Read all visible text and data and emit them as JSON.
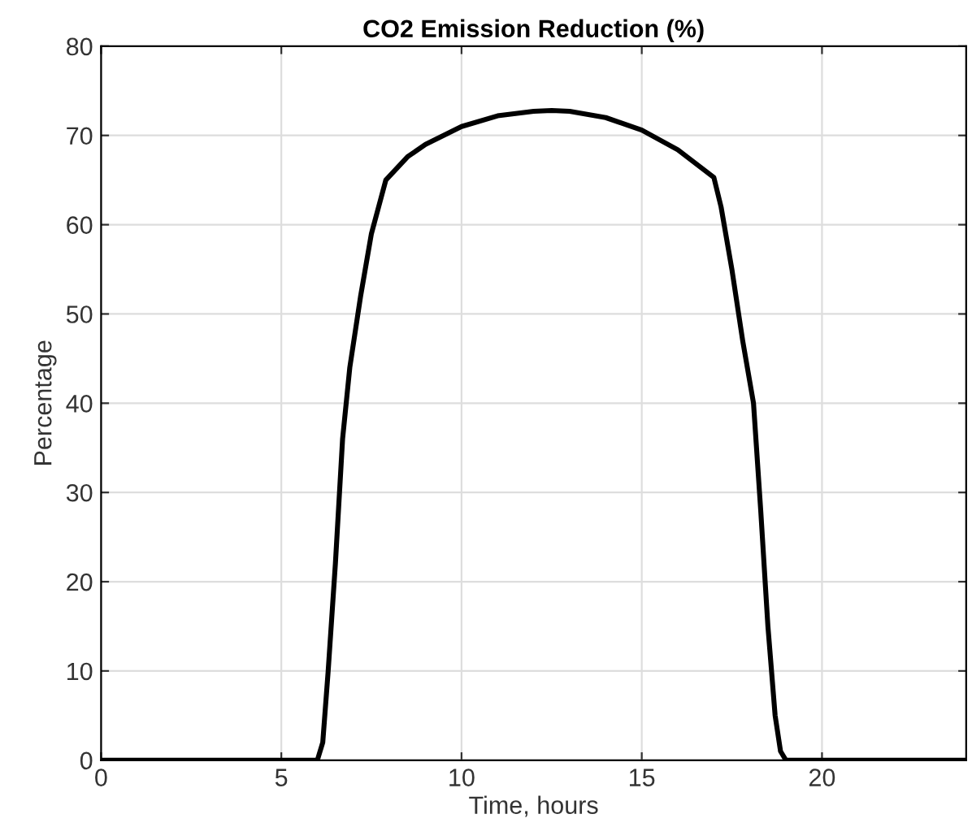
{
  "chart_data": {
    "type": "line",
    "title": "CO2 Emission Reduction (%)",
    "xlabel": "Time, hours",
    "ylabel": "Percentage",
    "series": [
      {
        "color": "#000000",
        "x": [
          0,
          6,
          6.15,
          6.3,
          6.5,
          6.7,
          6.9,
          7.2,
          7.5,
          7.9,
          8.5,
          9,
          10,
          11,
          12,
          12.5,
          13,
          14,
          15,
          16,
          17,
          17.2,
          17.5,
          17.8,
          18.1,
          18.3,
          18.5,
          18.7,
          18.85,
          19,
          24
        ],
        "values": [
          0,
          0,
          2,
          10,
          22,
          36,
          44,
          52,
          59,
          65,
          67.6,
          69,
          71,
          72.2,
          72.7,
          72.8,
          72.7,
          72,
          70.6,
          68.4,
          65.3,
          62,
          55,
          47,
          40,
          28,
          15,
          5,
          1,
          0,
          0
        ]
      }
    ],
    "xlim": [
      0,
      24
    ],
    "ylim": [
      0,
      80
    ],
    "xticks": [
      0,
      5,
      10,
      15,
      20
    ],
    "yticks": [
      0,
      10,
      20,
      30,
      40,
      50,
      60,
      70,
      80
    ],
    "grid": true,
    "marker": "none",
    "line_style": "solid",
    "legend": false
  }
}
